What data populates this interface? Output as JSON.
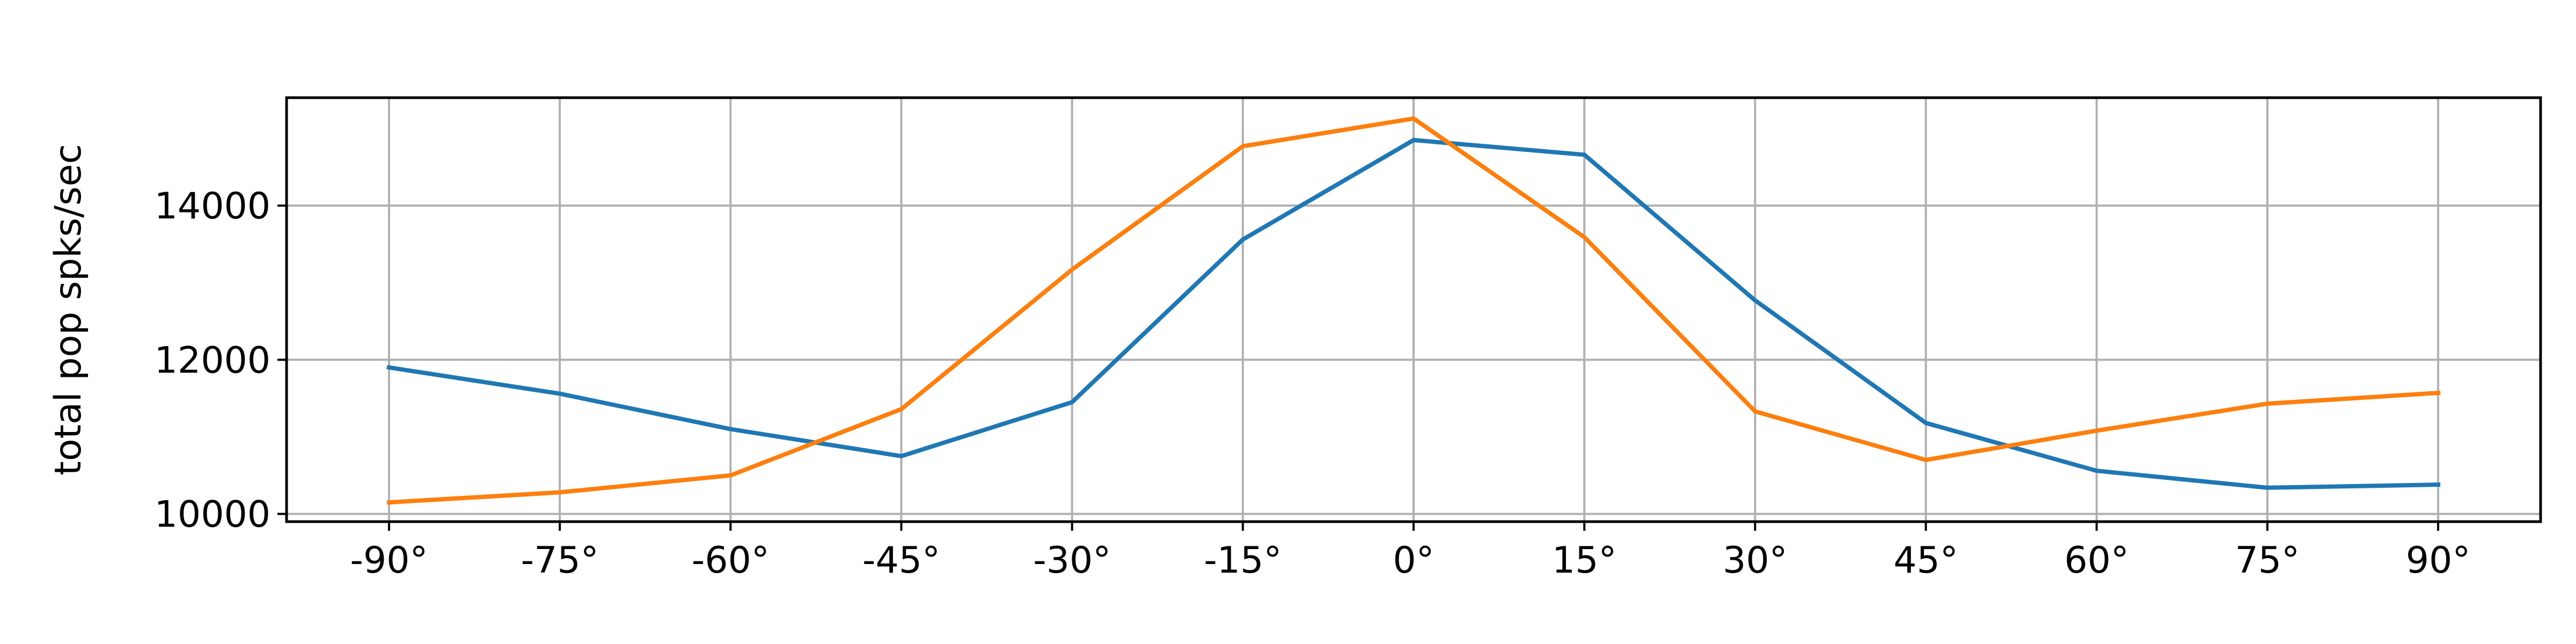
{
  "chart_data": {
    "type": "line",
    "title": "",
    "xlabel": "",
    "ylabel": "total pop spks/sec",
    "x": [
      -90,
      -75,
      -60,
      -45,
      -30,
      -15,
      0,
      15,
      30,
      45,
      60,
      75,
      90
    ],
    "x_tick_labels": [
      "-90°",
      "-75°",
      "-60°",
      "-45°",
      "-30°",
      "-15°",
      "0°",
      "15°",
      "30°",
      "45°",
      "60°",
      "75°",
      "90°"
    ],
    "y_ticks": [
      10000,
      12000,
      14000
    ],
    "y_tick_labels": [
      "10000",
      "12000",
      "14000"
    ],
    "xlim": [
      -99,
      99
    ],
    "ylim": [
      9900,
      15400
    ],
    "grid": true,
    "series": [
      {
        "color": "#1f77b4",
        "values": [
          11900,
          11560,
          11100,
          10750,
          11450,
          13560,
          14850,
          14660,
          12770,
          11180,
          10560,
          10340,
          10380
        ]
      },
      {
        "color": "#ff7f0e",
        "values": [
          10150,
          10280,
          10500,
          11360,
          13170,
          14770,
          15130,
          13590,
          11330,
          10700,
          11080,
          11430,
          11570
        ]
      }
    ]
  }
}
